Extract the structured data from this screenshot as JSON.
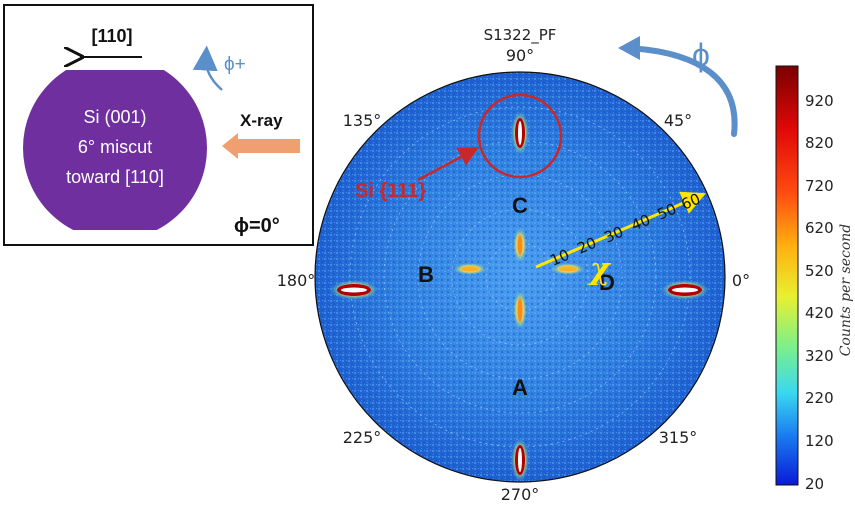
{
  "inset": {
    "direction_label": "[110]",
    "phi_plus_label": "ϕ+",
    "wafer_lines": [
      "Si (001)",
      "6° miscut",
      "toward [110]"
    ],
    "xray_label": "X-ray",
    "phi_zero_label": "ϕ=0°",
    "wafer_color": "#6f2f9f",
    "xray_arrow_color": "#f0a070"
  },
  "pole_figure": {
    "title": "S1322_PF",
    "phi_symbol": "ϕ",
    "angle_labels": {
      "a90": "90°",
      "a45": "45°",
      "a0": "0°",
      "a135": "135°",
      "a180": "180°",
      "a225": "225°",
      "a270": "270°",
      "a315": "315°"
    },
    "chi_symbol": "χ",
    "chi_ticks": [
      "10",
      "20",
      "30",
      "40",
      "50",
      "60"
    ],
    "peak_labels": {
      "A": "A",
      "B": "B",
      "C": "C",
      "D": "D"
    },
    "si111_label": "Si {111}",
    "background_color": "#2f7fe0",
    "chi_color": "#ffe600",
    "highlight_color": "#c8282a"
  },
  "colorbar": {
    "ticks": [
      "920",
      "820",
      "720",
      "620",
      "520",
      "420",
      "320",
      "220",
      "120",
      "20"
    ],
    "label": "Counts per second"
  }
}
